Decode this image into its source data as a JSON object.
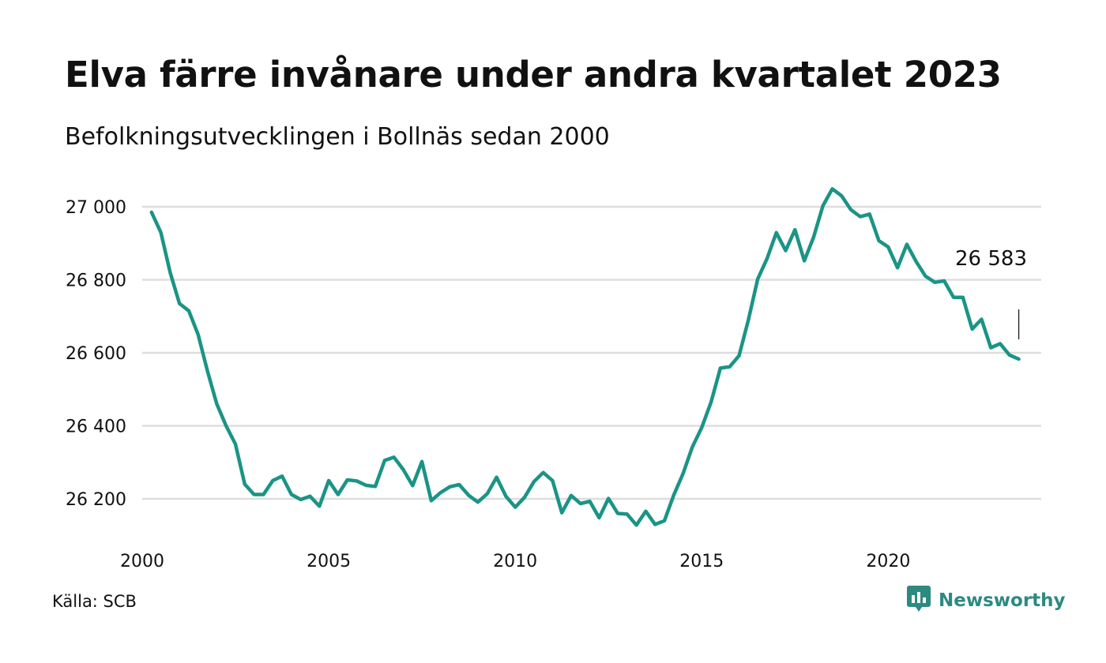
{
  "header": {
    "title": "Elva färre invånare under andra kvartalet 2023",
    "subtitle": "Befolkningsutvecklingen i Bollnäs sedan 2000"
  },
  "footer": {
    "source": "Källa: SCB",
    "brand": "Newsworthy",
    "brand_icon": "bar-chart-logo-icon"
  },
  "colors": {
    "line": "#1a9485",
    "grid": "#dddddd",
    "text": "#111111",
    "brand": "#2c8a80"
  },
  "chart_data": {
    "type": "line",
    "x_ticks": [
      2000,
      2005,
      2010,
      2015,
      2020
    ],
    "y_ticks": [
      26200,
      26400,
      26600,
      26800,
      27000
    ],
    "y_tick_labels": [
      "26 200",
      "26 400",
      "26 600",
      "26 800",
      "27 000"
    ],
    "ylim": [
      26100,
      27070
    ],
    "xlim": [
      2000.0,
      2024.25
    ],
    "grid": "horizontal",
    "annotation": {
      "text": "26 583",
      "x": 2023.5,
      "y": 26583
    },
    "series": [
      {
        "x": [
          2000.25,
          2000.5,
          2000.75,
          2001.0,
          2001.25,
          2001.5,
          2001.75,
          2002.0,
          2002.25,
          2002.5,
          2002.75,
          2003.0,
          2003.25,
          2003.5,
          2003.75,
          2004.0,
          2004.25,
          2004.5,
          2004.75,
          2005.0,
          2005.25,
          2005.5,
          2005.75,
          2006.0,
          2006.25,
          2006.5,
          2006.75,
          2007.0,
          2007.25,
          2007.5,
          2007.75,
          2008.0,
          2008.25,
          2008.5,
          2008.75,
          2009.0,
          2009.25,
          2009.5,
          2009.75,
          2010.0,
          2010.25,
          2010.5,
          2010.75,
          2011.0,
          2011.25,
          2011.5,
          2011.75,
          2012.0,
          2012.25,
          2012.5,
          2012.75,
          2013.0,
          2013.25,
          2013.5,
          2013.75,
          2014.0,
          2014.25,
          2014.5,
          2014.75,
          2015.0,
          2015.25,
          2015.5,
          2015.75,
          2016.0,
          2016.25,
          2016.5,
          2016.75,
          2017.0,
          2017.25,
          2017.5,
          2017.75,
          2018.0,
          2018.25,
          2018.5,
          2018.75,
          2019.0,
          2019.25,
          2019.5,
          2019.75,
          2020.0,
          2020.25,
          2020.5,
          2020.75,
          2021.0,
          2021.25,
          2021.5,
          2021.75,
          2022.0,
          2022.25,
          2022.5,
          2022.75,
          2023.0,
          2023.25,
          2023.5
        ],
        "values": [
          26985,
          26930,
          26820,
          26735,
          26715,
          26650,
          26550,
          26460,
          26400,
          26350,
          26240,
          26212,
          26212,
          26250,
          26262,
          26212,
          26198,
          26207,
          26180,
          26250,
          26212,
          26252,
          26249,
          26237,
          26234,
          26305,
          26314,
          26280,
          26236,
          26302,
          26195,
          26217,
          26233,
          26239,
          26210,
          26191,
          26214,
          26259,
          26207,
          26177,
          26204,
          26247,
          26272,
          26250,
          26162,
          26209,
          26187,
          26193,
          26148,
          26201,
          26160,
          26158,
          26128,
          26166,
          26130,
          26140,
          26210,
          26269,
          26342,
          26395,
          26465,
          26558,
          26562,
          26592,
          26690,
          26802,
          26858,
          26929,
          26880,
          26937,
          26852,
          26917,
          27003,
          27049,
          27030,
          26992,
          26973,
          26980,
          26907,
          26890,
          26833,
          26897,
          26850,
          26810,
          26793,
          26797,
          26752,
          26752,
          26665,
          26692,
          26614,
          26625,
          26594,
          26583
        ]
      }
    ]
  }
}
